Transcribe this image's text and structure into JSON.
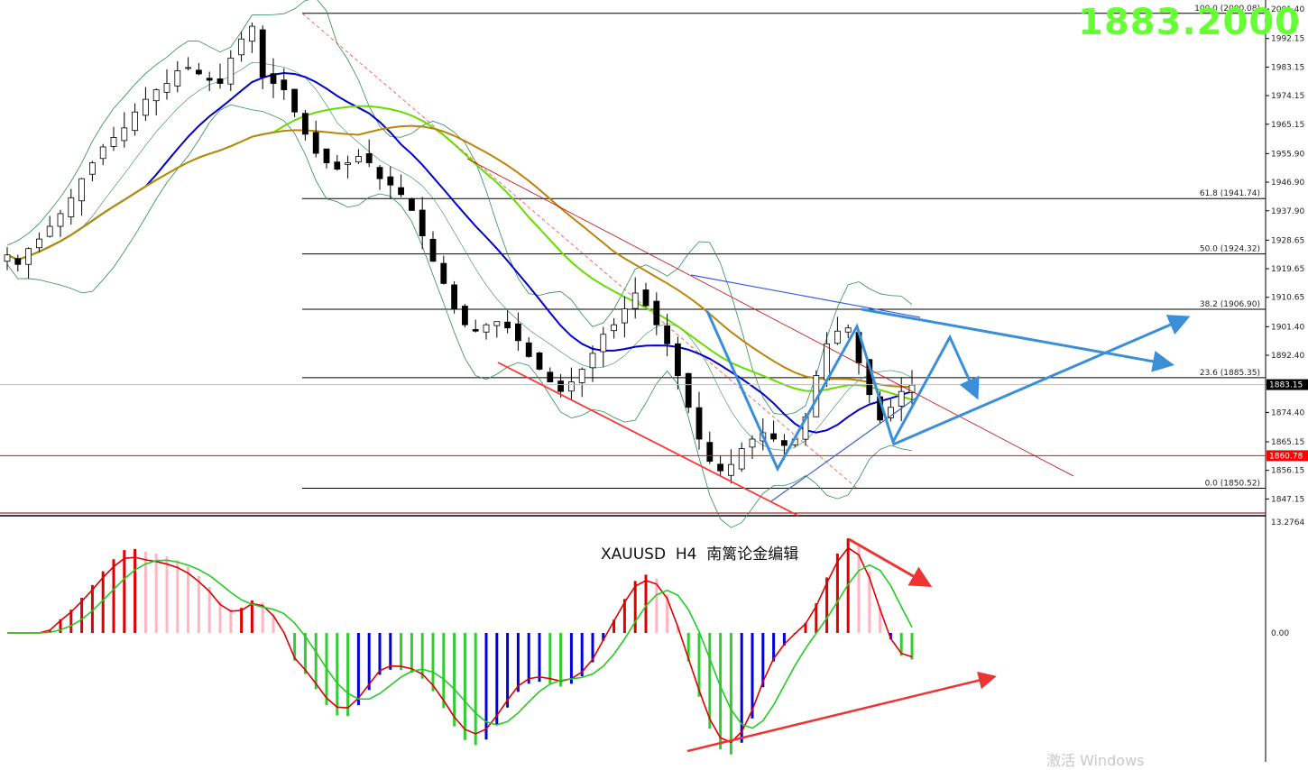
{
  "symbol": "XAUUSD",
  "timeframe": "H4",
  "author_label": "南篱论金编辑",
  "price_display": "1883.2000",
  "watermark": "激活 Windows",
  "colors": {
    "bull": "#ffffff",
    "bear": "#000000",
    "ma_blue": "#0000cc",
    "ma_green": "#66dd00",
    "ma_brown": "#b8860b",
    "bollinger": "#2e8b57",
    "fib": "#000000",
    "support": "#ff0000",
    "forecast": "#3a8fd8",
    "macd_red": "#e00000",
    "macd_pink": "#ffb6c1",
    "macd_green": "#33cc33",
    "macd_blue": "#0000dd"
  },
  "chart_data": {
    "type": "candlestick",
    "y_axis": {
      "min": 1843,
      "max": 2002,
      "ticks": [
        "2001.40",
        "1992.15",
        "1983.15",
        "1974.15",
        "1965.15",
        "1955.90",
        "1946.90",
        "1937.90",
        "1928.65",
        "1919.65",
        "1910.65",
        "1901.40",
        "1892.40",
        "1883.15",
        "1874.40",
        "1865.15",
        "1856.15",
        "1847.15"
      ]
    },
    "current_price": "1883.15",
    "support_level": "1860.78",
    "fibonacci": [
      {
        "label": "100.0 (2000.08)",
        "value": 2000.08
      },
      {
        "label": "61.8 (1941.74)",
        "value": 1941.74
      },
      {
        "label": "50.0 (1924.32)",
        "value": 1924.32
      },
      {
        "label": "38.2 (1906.90)",
        "value": 1906.9
      },
      {
        "label": "23.6 (1885.35)",
        "value": 1885.35
      },
      {
        "label": "0.0 (1850.52)",
        "value": 1850.52
      }
    ],
    "macd_axis": {
      "top_label": "13.2764",
      "zero_label": "0.00"
    },
    "close_path": [
      1924,
      1921,
      1926,
      1929,
      1933,
      1937,
      1942,
      1948,
      1953,
      1958,
      1961,
      1964,
      1969,
      1973,
      1976,
      1978,
      1982,
      1983,
      1981,
      1979,
      1978,
      1986,
      1992,
      1996,
      1980,
      1978,
      1976,
      1969,
      1962,
      1956,
      1953,
      1951,
      1953,
      1955,
      1953,
      1948,
      1946,
      1943,
      1938,
      1930,
      1922,
      1915,
      1907,
      1902,
      1900,
      1902,
      1903,
      1901,
      1897,
      1892,
      1888,
      1884,
      1881,
      1884,
      1888,
      1893,
      1899,
      1902,
      1907,
      1912,
      1908,
      1902,
      1896,
      1886,
      1876,
      1866,
      1859,
      1856,
      1858,
      1863,
      1866,
      1868,
      1866,
      1864,
      1866,
      1873,
      1886,
      1896,
      1900,
      1901,
      1890,
      1880,
      1872,
      1876,
      1881,
      1883
    ]
  }
}
